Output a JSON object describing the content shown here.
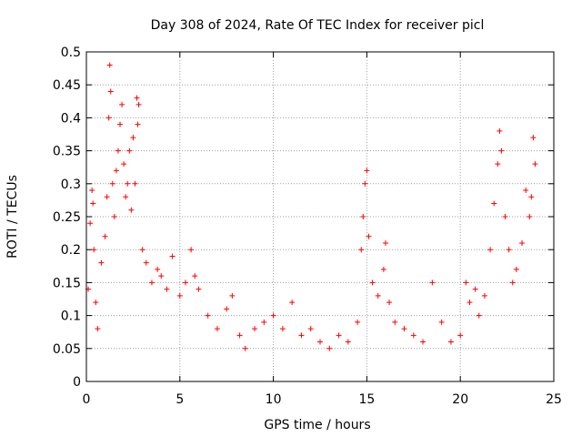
{
  "chart_data": {
    "type": "scatter",
    "title": "Day 308 of 2024, Rate Of TEC Index for receiver picl",
    "xlabel": "GPS time / hours",
    "ylabel": "ROTI / TECUs",
    "xlim": [
      0,
      25
    ],
    "ylim": [
      0,
      0.5
    ],
    "x_ticks": [
      0,
      5,
      10,
      15,
      20,
      25
    ],
    "x_tick_labels": [
      "0",
      "5",
      "10",
      "15",
      "20",
      "25"
    ],
    "y_ticks": [
      0,
      0.05,
      0.1,
      0.15,
      0.2,
      0.25,
      0.3,
      0.35,
      0.4,
      0.45,
      0.5
    ],
    "y_tick_labels": [
      "0",
      "0.05",
      "0.1",
      "0.15",
      "0.2",
      "0.25",
      "0.3",
      "0.35",
      "0.4",
      "0.45",
      "0.5"
    ],
    "grid": true,
    "marker": "+",
    "marker_color": "#ff0000",
    "series": [
      {
        "name": "ROTI",
        "points": [
          [
            0.1,
            0.14
          ],
          [
            0.2,
            0.24
          ],
          [
            0.3,
            0.29
          ],
          [
            0.35,
            0.27
          ],
          [
            0.4,
            0.2
          ],
          [
            0.5,
            0.12
          ],
          [
            0.6,
            0.08
          ],
          [
            0.8,
            0.18
          ],
          [
            1.0,
            0.22
          ],
          [
            1.1,
            0.28
          ],
          [
            1.2,
            0.4
          ],
          [
            1.25,
            0.48
          ],
          [
            1.3,
            0.44
          ],
          [
            1.4,
            0.3
          ],
          [
            1.5,
            0.25
          ],
          [
            1.6,
            0.32
          ],
          [
            1.7,
            0.35
          ],
          [
            1.8,
            0.39
          ],
          [
            1.9,
            0.42
          ],
          [
            2.0,
            0.33
          ],
          [
            2.1,
            0.28
          ],
          [
            2.2,
            0.3
          ],
          [
            2.3,
            0.35
          ],
          [
            2.4,
            0.26
          ],
          [
            2.5,
            0.37
          ],
          [
            2.6,
            0.3
          ],
          [
            2.7,
            0.43
          ],
          [
            2.75,
            0.39
          ],
          [
            2.8,
            0.42
          ],
          [
            3.0,
            0.2
          ],
          [
            3.2,
            0.18
          ],
          [
            3.5,
            0.15
          ],
          [
            3.8,
            0.17
          ],
          [
            4.0,
            0.16
          ],
          [
            4.3,
            0.14
          ],
          [
            4.6,
            0.19
          ],
          [
            5.0,
            0.13
          ],
          [
            5.3,
            0.15
          ],
          [
            5.6,
            0.2
          ],
          [
            5.8,
            0.16
          ],
          [
            6.0,
            0.14
          ],
          [
            6.5,
            0.1
          ],
          [
            7.0,
            0.08
          ],
          [
            7.5,
            0.11
          ],
          [
            7.8,
            0.13
          ],
          [
            8.2,
            0.07
          ],
          [
            8.5,
            0.05
          ],
          [
            9.0,
            0.08
          ],
          [
            9.5,
            0.09
          ],
          [
            10.0,
            0.1
          ],
          [
            10.5,
            0.08
          ],
          [
            11.0,
            0.12
          ],
          [
            11.5,
            0.07
          ],
          [
            12.0,
            0.08
          ],
          [
            12.5,
            0.06
          ],
          [
            13.0,
            0.05
          ],
          [
            13.5,
            0.07
          ],
          [
            14.0,
            0.06
          ],
          [
            14.5,
            0.09
          ],
          [
            14.7,
            0.2
          ],
          [
            14.8,
            0.25
          ],
          [
            14.9,
            0.3
          ],
          [
            15.0,
            0.32
          ],
          [
            15.1,
            0.22
          ],
          [
            15.3,
            0.15
          ],
          [
            15.6,
            0.13
          ],
          [
            15.9,
            0.17
          ],
          [
            16.0,
            0.21
          ],
          [
            16.2,
            0.12
          ],
          [
            16.5,
            0.09
          ],
          [
            17.0,
            0.08
          ],
          [
            17.5,
            0.07
          ],
          [
            18.0,
            0.06
          ],
          [
            18.5,
            0.15
          ],
          [
            19.0,
            0.09
          ],
          [
            19.5,
            0.06
          ],
          [
            20.0,
            0.07
          ],
          [
            20.3,
            0.15
          ],
          [
            20.5,
            0.12
          ],
          [
            20.8,
            0.14
          ],
          [
            21.0,
            0.1
          ],
          [
            21.3,
            0.13
          ],
          [
            21.6,
            0.2
          ],
          [
            21.8,
            0.27
          ],
          [
            22.0,
            0.33
          ],
          [
            22.1,
            0.38
          ],
          [
            22.2,
            0.35
          ],
          [
            22.4,
            0.25
          ],
          [
            22.6,
            0.2
          ],
          [
            22.8,
            0.15
          ],
          [
            23.0,
            0.17
          ],
          [
            23.3,
            0.21
          ],
          [
            23.5,
            0.29
          ],
          [
            23.7,
            0.25
          ],
          [
            23.8,
            0.28
          ],
          [
            23.9,
            0.37
          ],
          [
            24.0,
            0.33
          ]
        ]
      }
    ]
  }
}
